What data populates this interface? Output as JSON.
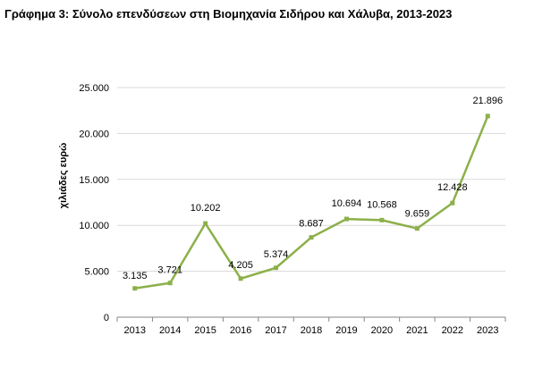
{
  "title": "Γράφημα 3: Σύνολο επενδύσεων στη Βιομηχανία Σιδήρου και Χάλυβα, 2013-2023",
  "chart_data": {
    "type": "line",
    "title": "Γράφημα 3: Σύνολο επενδύσεων στη Βιομηχανία Σιδήρου και Χάλυβα, 2013-2023",
    "xlabel": "",
    "ylabel": "χιλιάδες ευρώ",
    "categories": [
      "2013",
      "2014",
      "2015",
      "2016",
      "2017",
      "2018",
      "2019",
      "2020",
      "2021",
      "2022",
      "2023"
    ],
    "series": [
      {
        "values": [
          3135,
          3721,
          10202,
          4205,
          5374,
          8687,
          10694,
          10568,
          9659,
          12428,
          21896
        ],
        "labels": [
          "3.135",
          "3.721",
          "10.202",
          "4.205",
          "5.374",
          "8.687",
          "10.694",
          "10.568",
          "9.659",
          "12.428",
          "21.896"
        ]
      }
    ],
    "ylim": [
      0,
      25000
    ],
    "yticks": [
      0,
      5000,
      10000,
      15000,
      20000,
      25000
    ],
    "ytick_labels": [
      "0",
      "5.000",
      "10.000",
      "15.000",
      "20.000",
      "25.000"
    ],
    "grid": "horizontal",
    "legend": "none",
    "colors": {
      "line": "#8cb04a",
      "grid": "#d9d9d9",
      "axis": "#868686"
    }
  }
}
